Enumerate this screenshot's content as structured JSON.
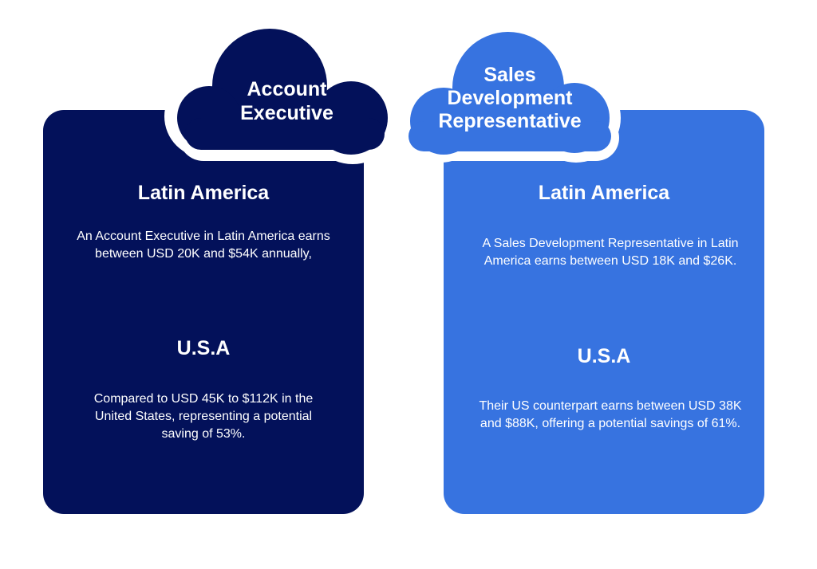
{
  "colors": {
    "left_card": "#03115a",
    "right_card": "#3773e0",
    "text": "#ffffff",
    "background": "#ffffff"
  },
  "account_executive": {
    "title_line1": "Account",
    "title_line2": "Executive",
    "latam_heading": "Latin America",
    "latam_text": "An Account Executive in Latin America earns between USD 20K and $54K annually,",
    "usa_heading": "U.S.A",
    "usa_text": "Compared to USD 45K to $112K in the United States, representing a potential saving of 53%."
  },
  "sales_development_representative": {
    "title_line1": "Sales",
    "title_line2": "Development",
    "title_line3": "Representative",
    "latam_heading": "Latin America",
    "latam_text": "A Sales Development Representative in Latin America earns between USD 18K and $26K.",
    "usa_heading": "U.S.A",
    "usa_text": "Their US counterpart earns between USD 38K and $88K, offering a potential savings of 61%."
  }
}
